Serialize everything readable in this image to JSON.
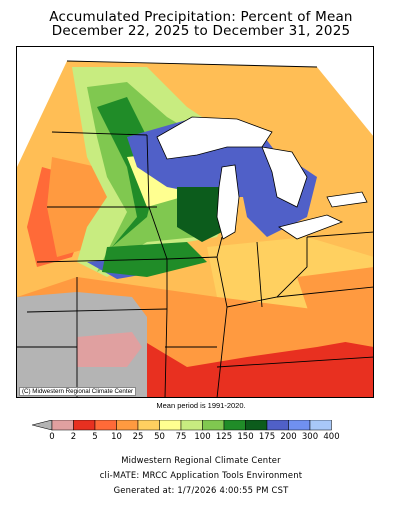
{
  "title": {
    "line1": "Accumulated Precipitation: Percent of Mean",
    "line2": "December 22, 2025 to December 31, 2025"
  },
  "map": {
    "credit": "(C) Midwestern Regional Climate Center"
  },
  "mean_period": "Mean period is 1991-2020.",
  "legend": {
    "labels": [
      "0",
      "2",
      "5",
      "10",
      "25",
      "50",
      "75",
      "100",
      "125",
      "150",
      "175",
      "200",
      "300",
      "400"
    ],
    "colors": [
      "#b4b4b4",
      "#e0a0a0",
      "#e83020",
      "#ff6a38",
      "#ff9a40",
      "#ffd060",
      "#ffff90",
      "#c8ec80",
      "#80c850",
      "#208c28",
      "#0c5c1c",
      "#5060c8",
      "#7090f0",
      "#a8c8f8"
    ]
  },
  "footer": {
    "line1": "Midwestern Regional Climate Center",
    "line2": "cli-MATE: MRCC Application Tools Environment",
    "line3": "Generated at: 1/7/2026 4:00:55 PM CST"
  }
}
